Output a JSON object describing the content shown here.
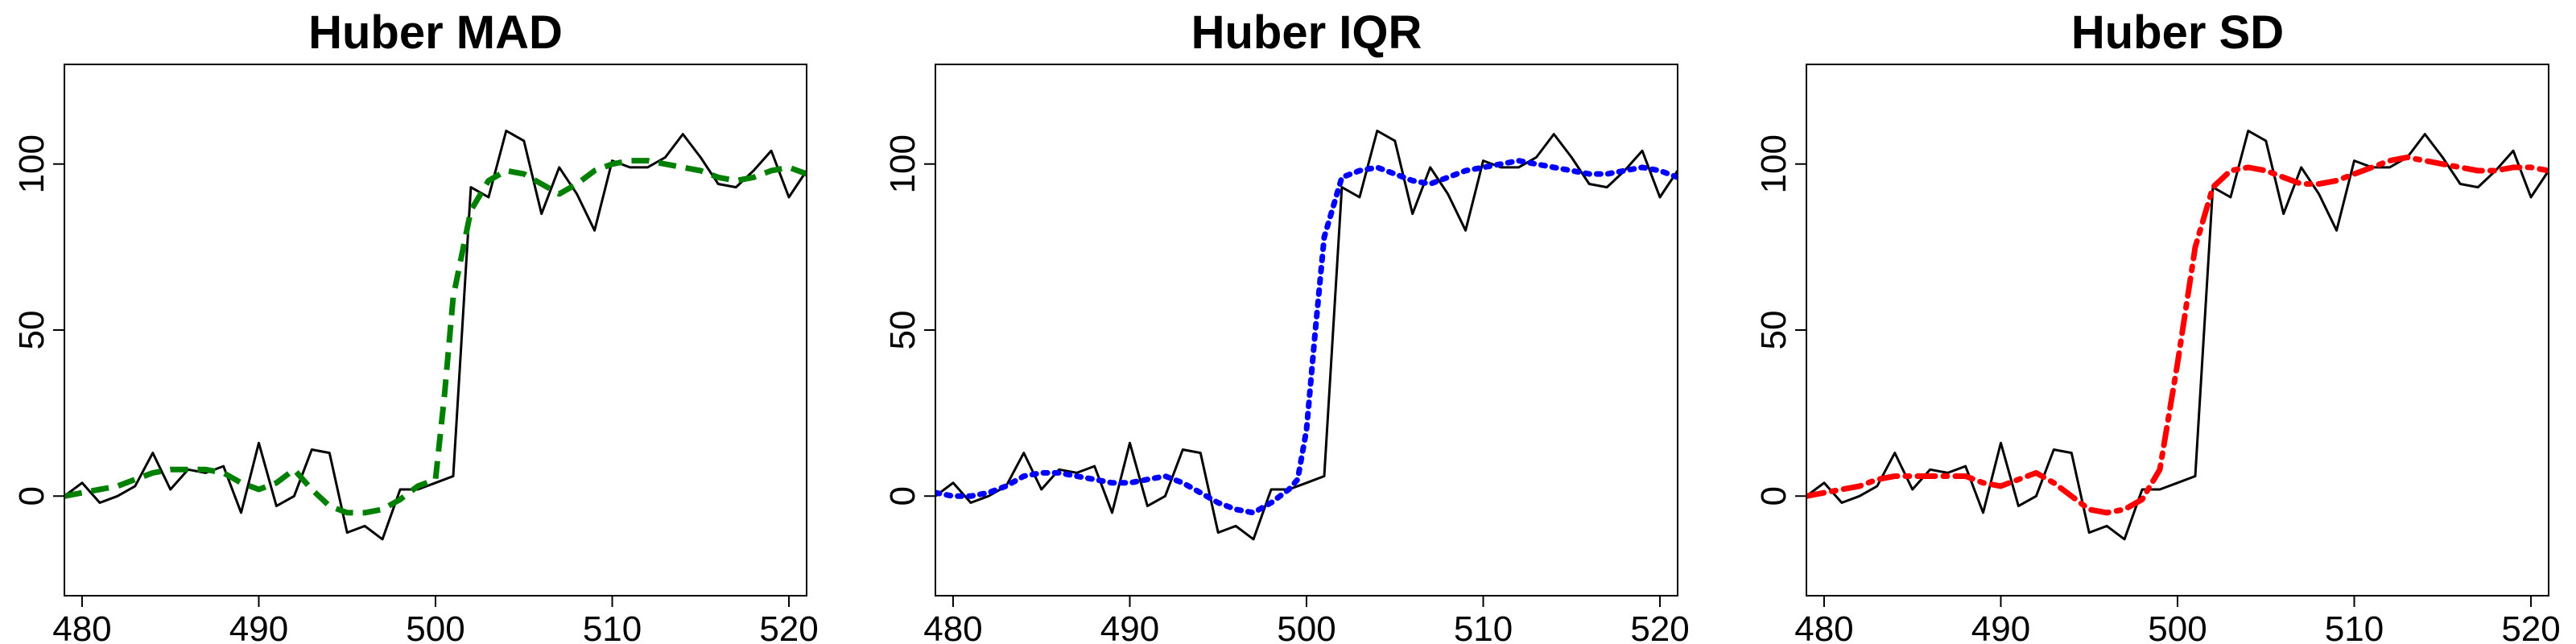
{
  "chart_data": [
    {
      "type": "line",
      "title": "Huber MAD",
      "xlabel": "",
      "ylabel": "",
      "xlim": [
        479,
        521
      ],
      "ylim": [
        -30,
        130
      ],
      "xticks": [
        480,
        490,
        500,
        510,
        520
      ],
      "yticks": [
        0,
        50,
        100
      ],
      "xtick_labels": [
        "480",
        "490",
        "500",
        "510",
        "520"
      ],
      "ytick_labels": [
        "0",
        "50",
        "100"
      ],
      "grid": false,
      "series": [
        {
          "role": "raw",
          "color": "#000000",
          "dash": "solid",
          "x": [
            479,
            480,
            481,
            482,
            483,
            484,
            485,
            486,
            487,
            488,
            489,
            490,
            491,
            492,
            493,
            494,
            495,
            496,
            497,
            498,
            499,
            500,
            501,
            502,
            503,
            504,
            505,
            506,
            507,
            508,
            509,
            510,
            511,
            512,
            513,
            514,
            515,
            516,
            517,
            518,
            519,
            520,
            521
          ],
          "y": [
            0,
            4,
            -2,
            0,
            3,
            13,
            2,
            8,
            7,
            9,
            -5,
            16,
            -3,
            0,
            14,
            13,
            -11,
            -9,
            -13,
            2,
            2,
            4,
            6,
            93,
            90,
            110,
            107,
            85,
            99,
            91,
            80,
            101,
            99,
            99,
            102,
            109,
            102,
            94,
            93,
            98,
            104,
            90,
            98
          ]
        },
        {
          "role": "smooth",
          "color": "#008000",
          "dash": "dashed",
          "x": [
            479,
            480,
            481,
            482,
            483,
            484,
            485,
            486,
            487,
            488,
            489,
            490,
            491,
            492,
            493,
            494,
            495,
            496,
            497,
            498,
            499,
            500,
            500.5,
            501,
            502,
            503,
            504,
            505,
            506,
            507,
            508,
            509,
            510,
            511,
            512,
            513,
            514,
            515,
            516,
            517,
            518,
            519,
            520,
            521
          ],
          "y": [
            0,
            1,
            2,
            3,
            5,
            7,
            8,
            8,
            8,
            7,
            4,
            2,
            4,
            8,
            2,
            -3,
            -5,
            -5,
            -4,
            -1,
            3,
            5,
            30,
            60,
            86,
            95,
            98,
            97,
            94,
            91,
            94,
            98,
            100,
            101,
            101,
            100,
            99,
            98,
            96,
            95,
            96,
            98,
            99,
            97
          ]
        }
      ]
    },
    {
      "type": "line",
      "title": "Huber IQR",
      "xlabel": "",
      "ylabel": "",
      "xlim": [
        479,
        521
      ],
      "ylim": [
        -30,
        130
      ],
      "xticks": [
        480,
        490,
        500,
        510,
        520
      ],
      "yticks": [
        0,
        50,
        100
      ],
      "xtick_labels": [
        "480",
        "490",
        "500",
        "510",
        "520"
      ],
      "ytick_labels": [
        "0",
        "50",
        "100"
      ],
      "grid": false,
      "series": [
        {
          "role": "raw",
          "color": "#000000",
          "dash": "solid",
          "x": [
            479,
            480,
            481,
            482,
            483,
            484,
            485,
            486,
            487,
            488,
            489,
            490,
            491,
            492,
            493,
            494,
            495,
            496,
            497,
            498,
            499,
            500,
            501,
            502,
            503,
            504,
            505,
            506,
            507,
            508,
            509,
            510,
            511,
            512,
            513,
            514,
            515,
            516,
            517,
            518,
            519,
            520,
            521
          ],
          "y": [
            0,
            4,
            -2,
            0,
            3,
            13,
            2,
            8,
            7,
            9,
            -5,
            16,
            -3,
            0,
            14,
            13,
            -11,
            -9,
            -13,
            2,
            2,
            4,
            6,
            93,
            90,
            110,
            107,
            85,
            99,
            91,
            80,
            101,
            99,
            99,
            102,
            109,
            102,
            94,
            93,
            98,
            104,
            90,
            98
          ]
        },
        {
          "role": "smooth",
          "color": "#0000ff",
          "dash": "dotted",
          "x": [
            479,
            480,
            481,
            482,
            483,
            484,
            485,
            486,
            487,
            488,
            489,
            490,
            491,
            492,
            493,
            494,
            495,
            496,
            497,
            498,
            499,
            499.5,
            500,
            500.5,
            501,
            502,
            503,
            504,
            505,
            506,
            507,
            508,
            509,
            510,
            511,
            512,
            513,
            514,
            515,
            516,
            517,
            518,
            519,
            520,
            521
          ],
          "y": [
            1,
            0,
            0,
            1,
            3,
            6,
            7,
            7,
            6,
            5,
            4,
            4,
            5,
            6,
            4,
            1,
            -2,
            -4,
            -5,
            -2,
            2,
            5,
            20,
            50,
            78,
            96,
            98,
            99,
            97,
            95,
            94,
            96,
            98,
            99,
            100,
            101,
            100,
            99,
            98,
            97,
            97,
            98,
            99,
            98,
            96
          ]
        }
      ]
    },
    {
      "type": "line",
      "title": "Huber SD",
      "xlabel": "",
      "ylabel": "",
      "xlim": [
        479,
        521
      ],
      "ylim": [
        -30,
        130
      ],
      "xticks": [
        480,
        490,
        500,
        510,
        520
      ],
      "yticks": [
        0,
        50,
        100
      ],
      "xtick_labels": [
        "480",
        "490",
        "500",
        "510",
        "520"
      ],
      "ytick_labels": [
        "0",
        "50",
        "100"
      ],
      "grid": false,
      "series": [
        {
          "role": "raw",
          "color": "#000000",
          "dash": "solid",
          "x": [
            479,
            480,
            481,
            482,
            483,
            484,
            485,
            486,
            487,
            488,
            489,
            490,
            491,
            492,
            493,
            494,
            495,
            496,
            497,
            498,
            499,
            500,
            501,
            502,
            503,
            504,
            505,
            506,
            507,
            508,
            509,
            510,
            511,
            512,
            513,
            514,
            515,
            516,
            517,
            518,
            519,
            520,
            521
          ],
          "y": [
            0,
            4,
            -2,
            0,
            3,
            13,
            2,
            8,
            7,
            9,
            -5,
            16,
            -3,
            0,
            14,
            13,
            -11,
            -9,
            -13,
            2,
            2,
            4,
            6,
            93,
            90,
            110,
            107,
            85,
            99,
            91,
            80,
            101,
            99,
            99,
            102,
            109,
            102,
            94,
            93,
            98,
            104,
            90,
            98
          ]
        },
        {
          "role": "smooth",
          "color": "#ff0000",
          "dash": "dashdot",
          "x": [
            479,
            480,
            481,
            482,
            483,
            484,
            485,
            486,
            487,
            488,
            489,
            490,
            491,
            492,
            493,
            494,
            495,
            496,
            497,
            498,
            499,
            500,
            501,
            502,
            503,
            504,
            505,
            506,
            507,
            508,
            509,
            510,
            511,
            512,
            513,
            514,
            515,
            516,
            517,
            518,
            519,
            520,
            521
          ],
          "y": [
            0,
            1,
            2,
            3,
            5,
            6,
            6,
            6,
            6,
            6,
            4,
            3,
            5,
            7,
            4,
            0,
            -4,
            -5,
            -4,
            -1,
            8,
            40,
            75,
            93,
            98,
            99,
            98,
            96,
            94,
            94,
            95,
            97,
            99,
            101,
            102,
            101,
            100,
            99,
            98,
            98,
            99,
            99,
            98
          ]
        }
      ]
    }
  ]
}
